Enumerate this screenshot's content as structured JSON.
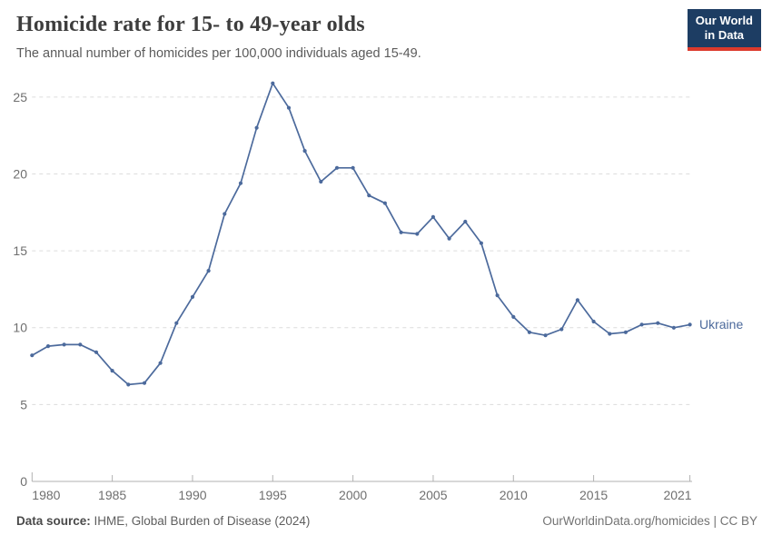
{
  "header": {
    "title": "Homicide rate for 15- to 49-year olds",
    "subtitle": "The annual number of homicides per 100,000 individuals aged 15-49.",
    "logo": {
      "line1": "Our World",
      "line2": "in Data",
      "bg_color": "#1d3d63",
      "stripe_color": "#dc3a2c"
    }
  },
  "chart_data": {
    "type": "line",
    "title": "Homicide rate for 15- to 49-year olds",
    "xlabel": "",
    "ylabel": "",
    "ylim": [
      0,
      25
    ],
    "yticks": [
      0,
      5,
      10,
      15,
      20,
      25
    ],
    "xticks": [
      1980,
      1985,
      1990,
      1995,
      2000,
      2005,
      2010,
      2015,
      2021
    ],
    "grid": "horizontal-dashed",
    "legend_position": "end-of-line-label",
    "x": [
      1980,
      1981,
      1982,
      1983,
      1984,
      1985,
      1986,
      1987,
      1988,
      1989,
      1990,
      1991,
      1992,
      1993,
      1994,
      1995,
      1996,
      1997,
      1998,
      1999,
      2000,
      2001,
      2002,
      2003,
      2004,
      2005,
      2006,
      2007,
      2008,
      2009,
      2010,
      2011,
      2012,
      2013,
      2014,
      2015,
      2016,
      2017,
      2018,
      2019,
      2020,
      2021
    ],
    "series": [
      {
        "name": "Ukraine",
        "color": "#4c6a9c",
        "values": [
          8.2,
          8.8,
          8.9,
          8.9,
          8.4,
          7.2,
          6.3,
          6.4,
          7.7,
          10.3,
          12.0,
          13.7,
          17.4,
          19.4,
          23.0,
          25.9,
          24.3,
          21.5,
          19.5,
          20.4,
          20.4,
          18.6,
          18.1,
          16.2,
          16.1,
          17.2,
          15.8,
          16.9,
          15.5,
          12.1,
          10.7,
          9.7,
          9.5,
          9.9,
          11.8,
          10.4,
          9.6,
          9.7,
          10.2,
          10.3,
          10.0,
          10.2
        ]
      }
    ]
  },
  "footer": {
    "source_label": "Data source:",
    "source_text": " IHME, Global Burden of Disease (2024)",
    "credit": "OurWorldinData.org/homicides | CC BY"
  }
}
